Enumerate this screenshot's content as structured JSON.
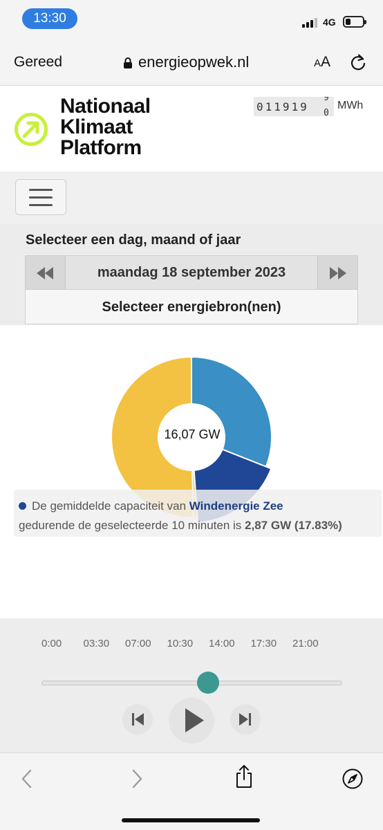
{
  "status_bar": {
    "time": "13:30",
    "network": "4G",
    "battery_level": 0.25
  },
  "browser": {
    "done_label": "Gereed",
    "url": "energieopwek.nl",
    "text_size_label_small": "A",
    "text_size_label_large": "A"
  },
  "site": {
    "logo_lines": [
      "Nationaal",
      "Klimaat",
      "Platform"
    ],
    "logo_color": "#c8f03c",
    "counter_digits": "011919",
    "counter_roll_top": "9",
    "counter_roll_bottom": "0",
    "counter_unit": "MWh"
  },
  "selector": {
    "title": "Selecteer een dag, maand of jaar",
    "date": "maandag 18 september 2023",
    "prev_icon": "rewind-icon",
    "next_icon": "fast-forward-icon",
    "source_button": "Selecteer energiebron(nen)"
  },
  "chart": {
    "center_label": "16,07 GW",
    "tooltip": {
      "prefix": "De gemiddelde capaciteit van",
      "source": "Windenergie Zee",
      "middle": "gedurende de geselecteerde 10 minuten is",
      "value": "2,87 GW (17.83%)"
    }
  },
  "chart_data": {
    "type": "pie",
    "donut": true,
    "center_label": "16,07 GW",
    "total_gw": 16.07,
    "slices": [
      {
        "value": 31.0,
        "color": "#3a8fc4"
      },
      {
        "value": 17.83,
        "color": "#204795",
        "label": "Windenergie Zee",
        "gw": 2.87
      },
      {
        "value": 0.8,
        "color": "#f3c242"
      },
      {
        "value": 50.37,
        "color": "#f3c242"
      }
    ]
  },
  "timeline": {
    "ticks": [
      "0:00",
      "03:30",
      "07:00",
      "10:30",
      "14:00",
      "17:30",
      "21:00"
    ],
    "slider_fraction": 0.555,
    "accent": "#3d9891"
  }
}
